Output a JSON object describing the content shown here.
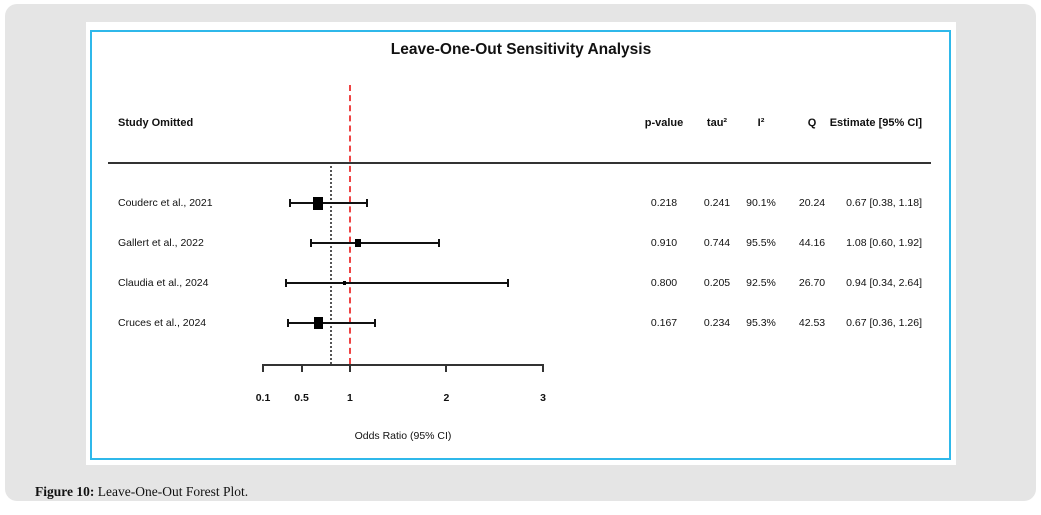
{
  "caption": {
    "prefix": "Figure 10:",
    "text": " Leave-One-Out Forest Plot."
  },
  "plot": {
    "columns": {
      "study": "Study Omitted",
      "p": "p-value",
      "tau2": "tau²",
      "i2": "I²",
      "q": "Q",
      "est": "Estimate [95% CI]"
    }
  },
  "chart_data": {
    "type": "forest",
    "title": "Leave-One-Out Sensitivity Analysis",
    "xlabel": "Odds Ratio (95% CI)",
    "axis": {
      "min": 0.1,
      "max": 3,
      "ticks": [
        0.1,
        0.5,
        1,
        2,
        3
      ],
      "tick_labels": [
        "0.1",
        "0.5",
        "1",
        "2",
        "3"
      ],
      "scale": "linear"
    },
    "reference_line": 1,
    "pooled_line": 0.8,
    "reference_line_color": "#ee4343",
    "accent_border_color": "#2fb8ea",
    "rows": [
      {
        "study": "Couderc et al., 2021",
        "p_value": "0.218",
        "tau2": "0.241",
        "i2": "90.1%",
        "q": "20.24",
        "estimate_label": "0.67 [0.38, 1.18]",
        "estimate": 0.67,
        "ci_low": 0.38,
        "ci_high": 1.18,
        "square_size": 10
      },
      {
        "study": "Gallert et al., 2022",
        "p_value": "0.910",
        "tau2": "0.744",
        "i2": "95.5%",
        "q": "44.16",
        "estimate_label": "1.08 [0.60, 1.92]",
        "estimate": 1.08,
        "ci_low": 0.6,
        "ci_high": 1.92,
        "square_size": 6
      },
      {
        "study": "Claudia et al., 2024",
        "p_value": "0.800",
        "tau2": "0.205",
        "i2": "92.5%",
        "q": "26.70",
        "estimate_label": "0.94 [0.34, 2.64]",
        "estimate": 0.94,
        "ci_low": 0.34,
        "ci_high": 2.64,
        "square_size": 3
      },
      {
        "study": "Cruces et al., 2024",
        "p_value": "0.167",
        "tau2": "0.234",
        "i2": "95.3%",
        "q": "42.53",
        "estimate_label": "0.67 [0.36, 1.26]",
        "estimate": 0.67,
        "ci_low": 0.36,
        "ci_high": 1.26,
        "square_size": 9
      }
    ]
  }
}
